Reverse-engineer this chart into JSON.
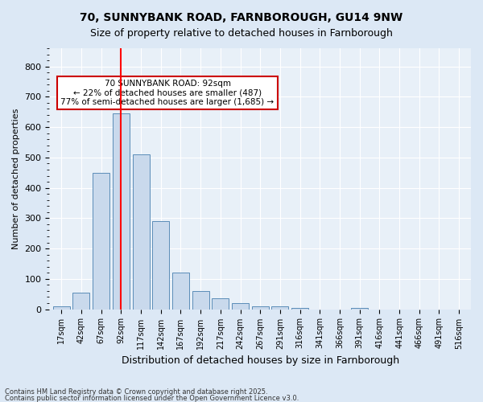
{
  "title1": "70, SUNNYBANK ROAD, FARNBOROUGH, GU14 9NW",
  "title2": "Size of property relative to detached houses in Farnborough",
  "xlabel": "Distribution of detached houses by size in Farnborough",
  "ylabel": "Number of detached properties",
  "categories": [
    "17sqm",
    "42sqm",
    "67sqm",
    "92sqm",
    "117sqm",
    "142sqm",
    "167sqm",
    "192sqm",
    "217sqm",
    "242sqm",
    "267sqm",
    "291sqm",
    "316sqm",
    "341sqm",
    "366sqm",
    "391sqm",
    "416sqm",
    "441sqm",
    "466sqm",
    "491sqm",
    "516sqm"
  ],
  "values": [
    10,
    55,
    450,
    645,
    510,
    290,
    120,
    60,
    35,
    20,
    10,
    10,
    5,
    0,
    0,
    5,
    0,
    0,
    0,
    0,
    0
  ],
  "bar_color": "#c9d9ec",
  "bar_edge_color": "#5b8db8",
  "highlight_bar_index": 3,
  "red_line_x": 3,
  "ylim": [
    0,
    860
  ],
  "yticks": [
    0,
    100,
    200,
    300,
    400,
    500,
    600,
    700,
    800
  ],
  "annotation_title": "70 SUNNYBANK ROAD: 92sqm",
  "annotation_line1": "← 22% of detached houses are smaller (487)",
  "annotation_line2": "77% of semi-detached houses are larger (1,685) →",
  "annotation_box_color": "#ffffff",
  "annotation_box_edge": "#cc0000",
  "footer1": "Contains HM Land Registry data © Crown copyright and database right 2025.",
  "footer2": "Contains public sector information licensed under the Open Government Licence v3.0.",
  "bg_color": "#dce8f5",
  "plot_bg_color": "#e8f0f8"
}
